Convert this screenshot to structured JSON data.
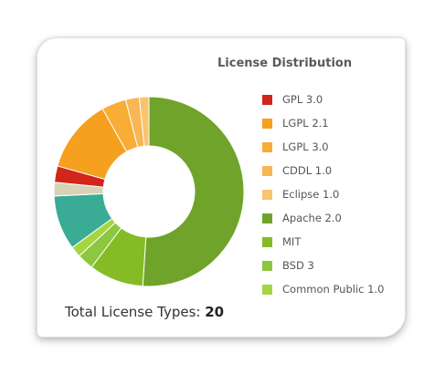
{
  "chart_data": {
    "type": "pie",
    "title": "License Distribution",
    "legend_position": "right",
    "categories": [
      "GPL 3.0",
      "LGPL 2.1",
      "LGPL 3.0",
      "CDDL 1.0",
      "Eclipse 1.0",
      "Apache 2.0",
      "MIT",
      "BSD 3",
      "Common Public 1.0"
    ],
    "slices": [
      {
        "label": "Apache 2.0",
        "value": 11,
        "color": "#6fa32a"
      },
      {
        "label": "MIT",
        "value": 2,
        "color": "#85bb25"
      },
      {
        "label": "BSD 3",
        "value": 0.6,
        "color": "#8dc63f"
      },
      {
        "label": "Common Public 1.0",
        "value": 0.4,
        "color": "#a5d63f"
      },
      {
        "label": "",
        "value": 2,
        "color": "#3aab94"
      },
      {
        "label": "",
        "value": 0.5,
        "color": "#d8d3b8"
      },
      {
        "label": "GPL 3.0",
        "value": 0.6,
        "color": "#d2261a"
      },
      {
        "label": "LGPL 2.1",
        "value": 2.7,
        "color": "#f5a01e"
      },
      {
        "label": "LGPL 3.0",
        "value": 0.9,
        "color": "#f7ad36"
      },
      {
        "label": "CDDL 1.0",
        "value": 0.5,
        "color": "#f9b654"
      },
      {
        "label": "Eclipse 1.0",
        "value": 0.35,
        "color": "#fac36e"
      }
    ]
  },
  "legend": [
    {
      "label": "GPL 3.0",
      "color": "#d2261a"
    },
    {
      "label": "LGPL 2.1",
      "color": "#f5a01e"
    },
    {
      "label": "LGPL 3.0",
      "color": "#f7ad36"
    },
    {
      "label": "CDDL 1.0",
      "color": "#f9b654"
    },
    {
      "label": "Eclipse 1.0",
      "color": "#fac36e"
    },
    {
      "label": "Apache 2.0",
      "color": "#6fa32a"
    },
    {
      "label": "MIT",
      "color": "#85bb25"
    },
    {
      "label": "BSD 3",
      "color": "#8dc63f"
    },
    {
      "label": "Common Public 1.0",
      "color": "#a5d63f"
    }
  ],
  "summary": {
    "label": "Total License Types:",
    "count": "20"
  }
}
